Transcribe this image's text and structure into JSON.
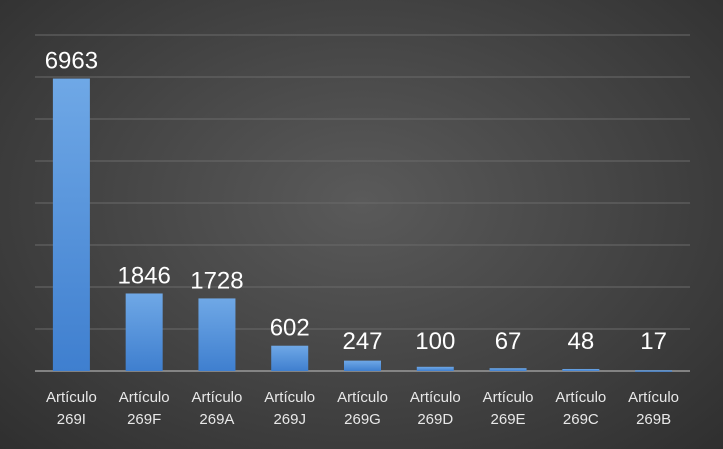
{
  "chart_data": {
    "type": "bar",
    "categories": [
      "Artículo 269I",
      "Artículo 269F",
      "Artículo 269A",
      "Artículo 269J",
      "Artículo 269G",
      "Artículo 269D",
      "Artículo 269E",
      "Artículo 269C",
      "Artículo 269B"
    ],
    "category_lines": [
      [
        "Artículo",
        "269I"
      ],
      [
        "Artículo",
        "269F"
      ],
      [
        "Artículo",
        "269A"
      ],
      [
        "Artículo",
        "269J"
      ],
      [
        "Artículo",
        "269G"
      ],
      [
        "Artículo",
        "269D"
      ],
      [
        "Artículo",
        "269E"
      ],
      [
        "Artículo",
        "269C"
      ],
      [
        "Artículo",
        "269B"
      ]
    ],
    "values": [
      6963,
      1846,
      1728,
      602,
      247,
      100,
      67,
      48,
      17
    ],
    "data_labels": [
      "6963",
      "1846",
      "1728",
      "602",
      "247",
      "100",
      "67",
      "48",
      "17"
    ],
    "ylim": [
      0,
      8000
    ],
    "grid": true,
    "legend": "none",
    "colors": {
      "bar_top": "#6fa8e6",
      "bar_bottom": "#3f7fcf",
      "background": "#474747"
    }
  }
}
